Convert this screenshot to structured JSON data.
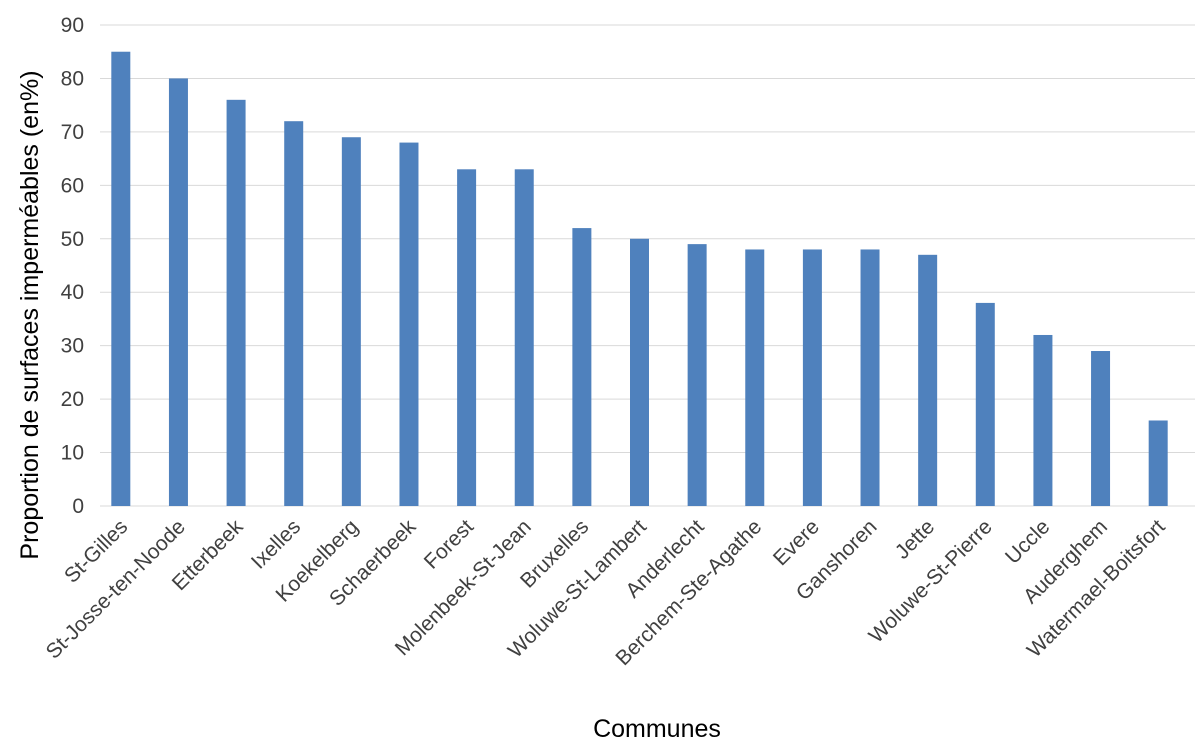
{
  "chart_data": {
    "type": "bar",
    "title": "",
    "xlabel": "Communes",
    "ylabel": "Proportion de surfaces imperméables (en%)",
    "ylim": [
      0,
      90
    ],
    "yticks": [
      0,
      10,
      20,
      30,
      40,
      50,
      60,
      70,
      80,
      90
    ],
    "grid": true,
    "legend": "none",
    "bar_color": "#4f81bd",
    "categories": [
      "St-Gilles",
      "St-Josse-ten-Noode",
      "Etterbeek",
      "Ixelles",
      "Koekelberg",
      "Schaerbeek",
      "Forest",
      "Molenbeek-St-Jean",
      "Bruxelles",
      "Woluwe-St-Lambert",
      "Anderlecht",
      "Berchem-Ste-Agathe",
      "Evere",
      "Ganshoren",
      "Jette",
      "Woluwe-St-Pierre",
      "Uccle",
      "Auderghem",
      "Watermael-Boitsfort"
    ],
    "values": [
      85,
      80,
      76,
      72,
      69,
      68,
      63,
      63,
      52,
      50,
      49,
      48,
      48,
      48,
      47,
      38,
      32,
      29,
      16
    ]
  }
}
